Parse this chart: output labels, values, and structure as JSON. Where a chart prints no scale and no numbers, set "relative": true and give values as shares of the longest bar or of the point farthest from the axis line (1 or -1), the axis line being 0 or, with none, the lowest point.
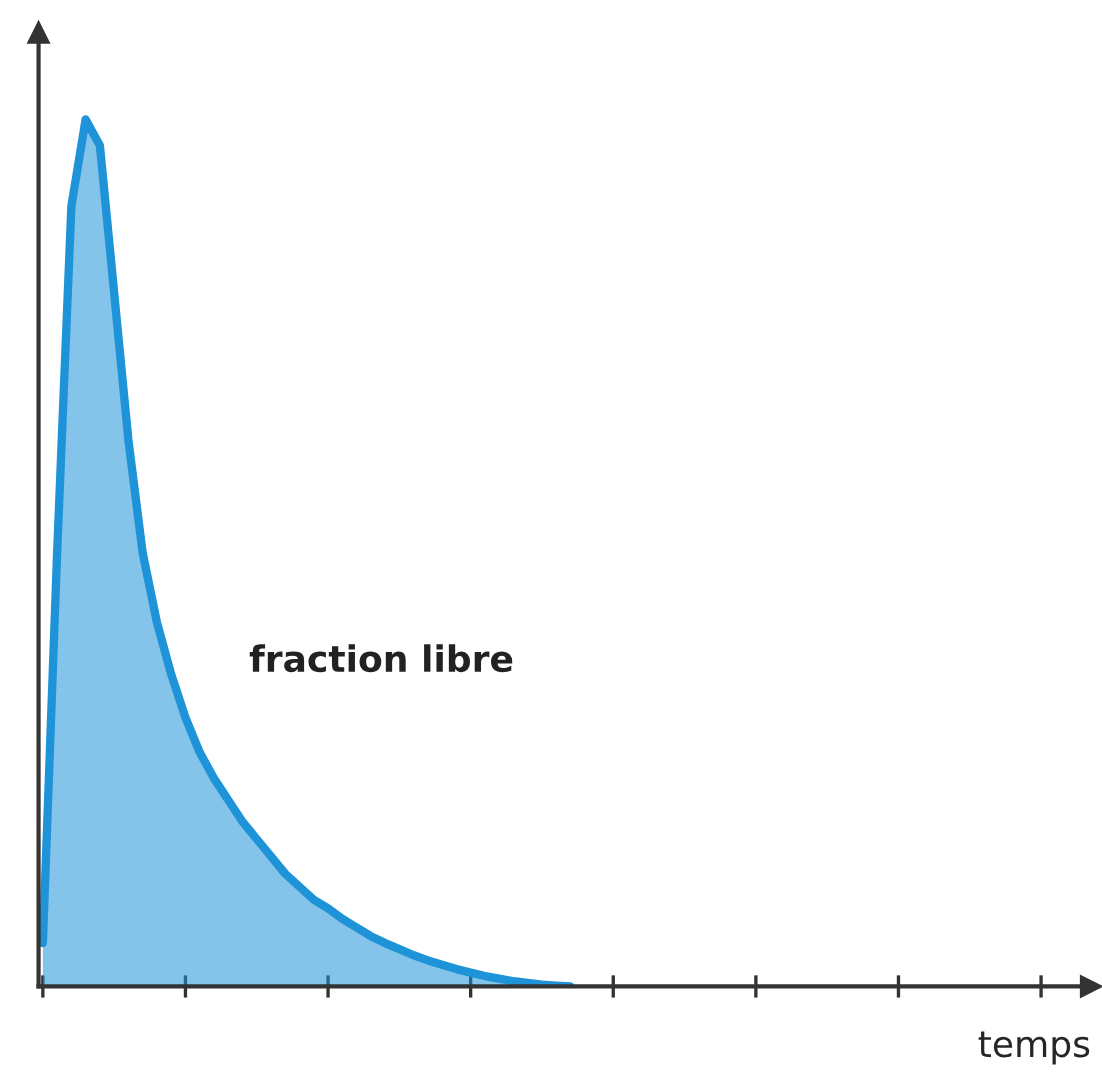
{
  "chart_data": {
    "type": "area",
    "relative": true,
    "xlabel": "temps",
    "categories": [
      null,
      null,
      null,
      null,
      null,
      null,
      null,
      null,
      null,
      null,
      null,
      null,
      null,
      null,
      null,
      null,
      null,
      null,
      null,
      null,
      null,
      null,
      null,
      null,
      null,
      null,
      null,
      null,
      null,
      null,
      null,
      null,
      null,
      null,
      null,
      null,
      null,
      null,
      null,
      null,
      null,
      null,
      null,
      null,
      null,
      null,
      null,
      null,
      null,
      null,
      null,
      null,
      null,
      null,
      null,
      null,
      null,
      null,
      null,
      null,
      null,
      null,
      null,
      null,
      null,
      null,
      null,
      null,
      null,
      null,
      null,
      null,
      null,
      null
    ],
    "series": [
      {
        "color": "#1f93d8",
        "values": [
          0.05,
          0.5,
          0.9,
          1.0,
          0.97,
          0.8,
          0.63,
          0.5,
          0.42,
          0.36,
          0.31,
          0.27,
          0.24,
          0.215,
          0.19,
          0.17,
          0.15,
          0.13,
          0.115,
          0.1,
          0.09,
          0.078,
          0.068,
          0.058,
          0.05,
          0.043,
          0.036,
          0.03,
          0.025,
          0.02,
          0.016,
          0.012,
          0.009,
          0.006,
          0.004,
          0.002,
          0.001,
          0,
          null,
          null,
          null,
          null,
          null,
          null,
          null,
          null,
          null,
          null,
          null,
          null,
          null,
          null,
          null,
          null,
          null,
          null,
          null,
          null,
          null,
          null,
          null,
          null,
          null,
          null,
          null,
          null,
          null,
          null,
          null,
          null,
          null,
          null,
          null,
          null
        ]
      }
    ],
    "annotations": [
      "fraction libre"
    ],
    "grid": false,
    "legend": false
  }
}
